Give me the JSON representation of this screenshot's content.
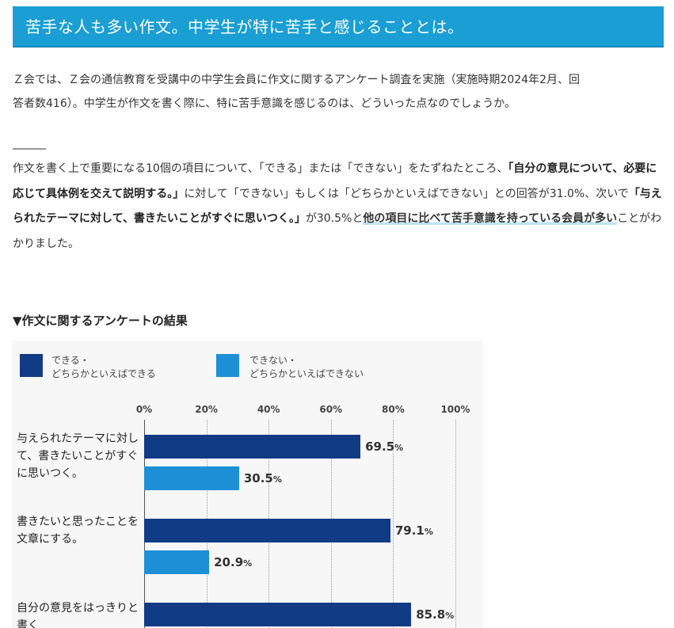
{
  "heading": {
    "title": "苦手な人も多い作文。中学生が特に苦手と感じることとは。"
  },
  "intro": {
    "line1": "Ｚ会では、Ｚ会の通信教育を受講中の中学生会員に作文に関するアンケート調査を実施（実施時期2024年2月、回",
    "line2": "答者数416）。中学生が作文を書く際に、特に苦手意識を感じるのは、どういった点なのでしょうか。"
  },
  "divider": "______",
  "body": {
    "t1": "作文を書く上で重要になる10個の項目について、「できる」または「できない」をたずねたところ、",
    "b1": "「自分の意見について、必要に応じて具体例を交えて説明する。」",
    "t2": "に対して「できない」もしくは「どちらかといえばできない」との回答が31.0%、次いで",
    "b2": "「与えられたテーマに対して、書きたいことがすぐに思いつく。」",
    "t3": "が30.5%と",
    "h1": "他の項目に比べて苦手意識を持っている会員が多い",
    "t4": "ことがわかりました。"
  },
  "section_title": "▼作文に関するアンケートの結果",
  "colors": {
    "heading_bg": "#1a9ed4",
    "can": "#123b85",
    "cannot": "#1d8fd6"
  },
  "chart_data": {
    "type": "bar",
    "orientation": "horizontal",
    "legend": [
      {
        "label": "できる・\nどちらかといえばできる",
        "color": "#123b85"
      },
      {
        "label": "できない・\nどちらかといえばできない",
        "color": "#1d8fd6"
      }
    ],
    "x_ticks": [
      "0%",
      "20%",
      "40%",
      "60%",
      "80%",
      "100%"
    ],
    "xlim": [
      0,
      100
    ],
    "grid": true,
    "categories": [
      "与えられたテーマに対して、書きたいことがすぐに思いつく。",
      "書きたいと思ったことを文章にする。",
      "自分の意見をはっきりと書く"
    ],
    "series": [
      {
        "name": "できる・どちらかといえばできる",
        "values": [
          69.5,
          79.1,
          85.8
        ]
      },
      {
        "name": "できない・どちらかといえばできない",
        "values": [
          30.5,
          20.9,
          null
        ]
      }
    ],
    "value_labels": [
      [
        "69.5",
        "79.1",
        "85.8"
      ],
      [
        "30.5",
        "20.9",
        null
      ]
    ],
    "value_suffix": "%"
  }
}
